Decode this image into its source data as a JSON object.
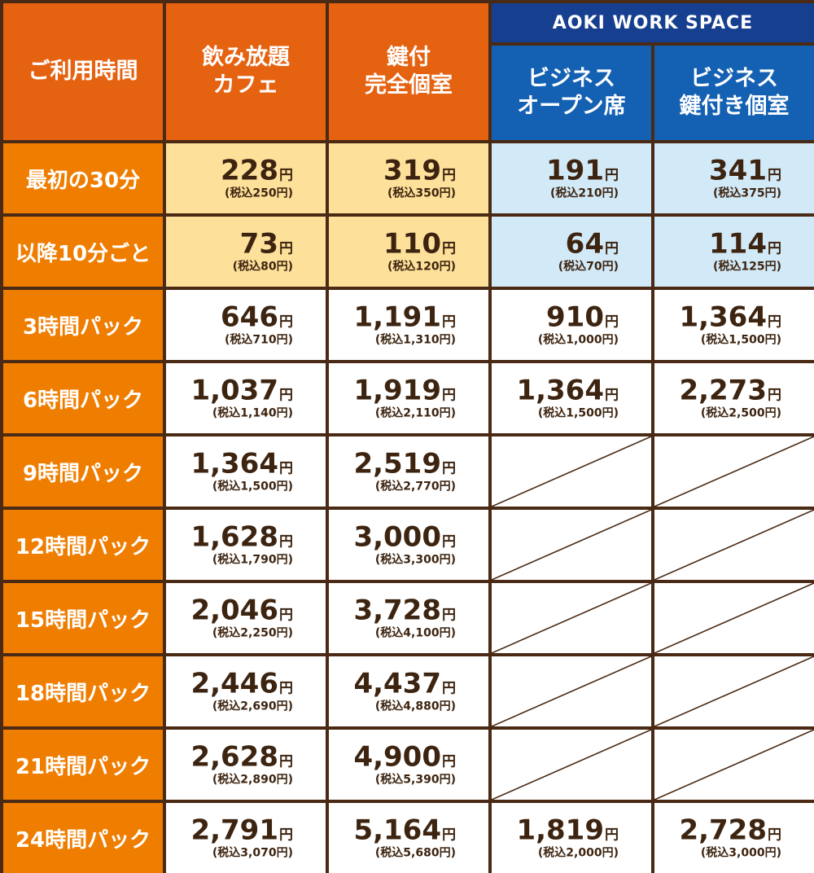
{
  "header": {
    "usage_time": "ご利用時間",
    "cafe": [
      "飲み放題",
      "カフェ"
    ],
    "private_room": [
      "鍵付",
      "完全個室"
    ],
    "brand": "AOKI WORK SPACE",
    "biz_open": [
      "ビジネス",
      "オープン席"
    ],
    "biz_private": [
      "ビジネス",
      "鍵付き個室"
    ]
  },
  "units": {
    "yen": "円",
    "tax_prefix": "(税込",
    "tax_suffix": "円)"
  },
  "rows": [
    {
      "label": "最初の30分",
      "bg": [
        "yellow",
        "yellow",
        "lblue",
        "lblue"
      ],
      "cells": [
        [
          "228",
          "250"
        ],
        [
          "319",
          "350"
        ],
        [
          "191",
          "210"
        ],
        [
          "341",
          "375"
        ]
      ]
    },
    {
      "label": "以降10分ごと",
      "bg": [
        "yellow",
        "yellow",
        "lblue",
        "lblue"
      ],
      "cells": [
        [
          "73",
          "80"
        ],
        [
          "110",
          "120"
        ],
        [
          "64",
          "70"
        ],
        [
          "114",
          "125"
        ]
      ]
    },
    {
      "label": "3時間パック",
      "bg": [
        "white",
        "white",
        "white",
        "white"
      ],
      "cells": [
        [
          "646",
          "710"
        ],
        [
          "1,191",
          "1,310"
        ],
        [
          "910",
          "1,000"
        ],
        [
          "1,364",
          "1,500"
        ]
      ]
    },
    {
      "label": "6時間パック",
      "bg": [
        "white",
        "white",
        "white",
        "white"
      ],
      "cells": [
        [
          "1,037",
          "1,140"
        ],
        [
          "1,919",
          "2,110"
        ],
        [
          "1,364",
          "1,500"
        ],
        [
          "2,273",
          "2,500"
        ]
      ]
    },
    {
      "label": "9時間パック",
      "bg": [
        "white",
        "white",
        "white",
        "white"
      ],
      "cells": [
        [
          "1,364",
          "1,500"
        ],
        [
          "2,519",
          "2,770"
        ],
        null,
        null
      ]
    },
    {
      "label": "12時間パック",
      "bg": [
        "white",
        "white",
        "white",
        "white"
      ],
      "cells": [
        [
          "1,628",
          "1,790"
        ],
        [
          "3,000",
          "3,300"
        ],
        null,
        null
      ]
    },
    {
      "label": "15時間パック",
      "bg": [
        "white",
        "white",
        "white",
        "white"
      ],
      "cells": [
        [
          "2,046",
          "2,250"
        ],
        [
          "3,728",
          "4,100"
        ],
        null,
        null
      ]
    },
    {
      "label": "18時間パック",
      "bg": [
        "white",
        "white",
        "white",
        "white"
      ],
      "cells": [
        [
          "2,446",
          "2,690"
        ],
        [
          "4,437",
          "4,880"
        ],
        null,
        null
      ]
    },
    {
      "label": "21時間パック",
      "bg": [
        "white",
        "white",
        "white",
        "white"
      ],
      "cells": [
        [
          "2,628",
          "2,890"
        ],
        [
          "4,900",
          "5,390"
        ],
        null,
        null
      ]
    },
    {
      "label": "24時間パック",
      "bg": [
        "white",
        "white",
        "white",
        "white"
      ],
      "cells": [
        [
          "2,791",
          "3,070"
        ],
        [
          "5,164",
          "5,680"
        ],
        [
          "1,819",
          "2,000"
        ],
        [
          "2,728",
          "3,000"
        ]
      ]
    }
  ],
  "colors": {
    "orange_header": "#e56211",
    "orange_label": "#ef7d00",
    "navy": "#173f8f",
    "blue": "#1461b3",
    "yellow": "#fde09a",
    "light_blue": "#d2eaf8",
    "border": "#4a2a14"
  }
}
